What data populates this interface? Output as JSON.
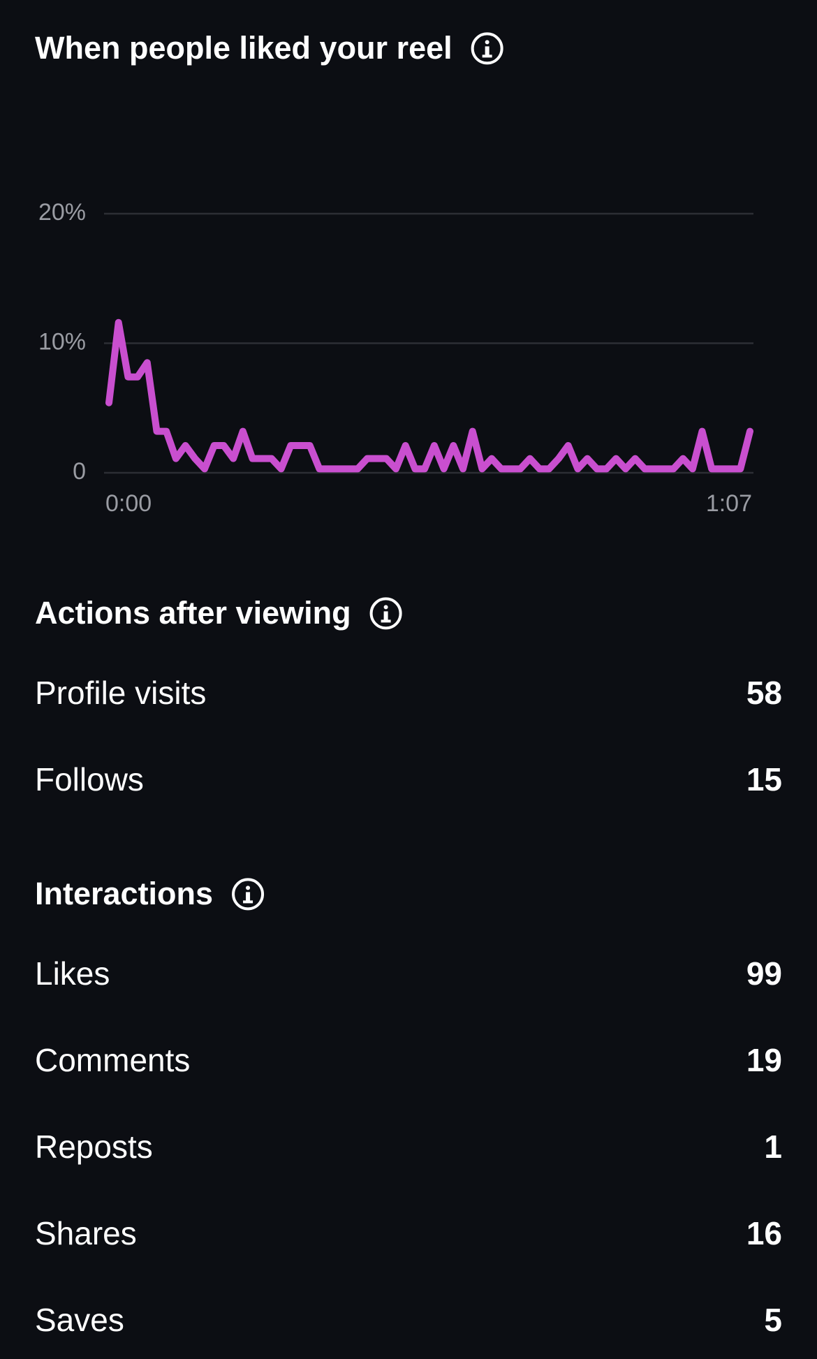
{
  "chart_data": {
    "type": "line",
    "title": "When people liked your reel",
    "x": [
      0,
      1,
      2,
      3,
      4,
      5,
      6,
      7,
      8,
      9,
      10,
      11,
      12,
      13,
      14,
      15,
      16,
      17,
      18,
      19,
      20,
      21,
      22,
      23,
      24,
      25,
      26,
      27,
      28,
      29,
      30,
      31,
      32,
      33,
      34,
      35,
      36,
      37,
      38,
      39,
      40,
      41,
      42,
      43,
      44,
      45,
      46,
      47,
      48,
      49,
      50,
      51,
      52,
      53,
      54,
      55,
      56,
      57,
      58,
      59,
      60,
      61,
      62,
      63,
      64,
      65,
      66,
      67
    ],
    "series": [
      {
        "color": "#c94fcf",
        "values": [
          5.4,
          11.6,
          7.4,
          7.4,
          8.5,
          3.2,
          3.2,
          1.1,
          2.1,
          1.1,
          0.3,
          2.1,
          2.1,
          1.1,
          3.2,
          1.1,
          1.1,
          1.1,
          0.3,
          2.1,
          2.1,
          2.1,
          0.3,
          0.3,
          0.3,
          0.3,
          0.3,
          1.1,
          1.1,
          1.1,
          0.3,
          2.1,
          0.3,
          0.3,
          2.1,
          0.3,
          2.1,
          0.3,
          3.2,
          0.3,
          1.1,
          0.3,
          0.3,
          0.3,
          1.1,
          0.3,
          0.3,
          1.1,
          2.1,
          0.3,
          1.1,
          0.3,
          0.3,
          1.1,
          0.3,
          1.1,
          0.3,
          0.3,
          0.3,
          0.3,
          1.1,
          0.3,
          3.2,
          0.3,
          0.3,
          0.3,
          0.3,
          3.2
        ]
      }
    ],
    "xlim": [
      0,
      67
    ],
    "xticks": [
      {
        "value": 0,
        "label": "0:00"
      },
      {
        "value": 67,
        "label": "1:07"
      }
    ],
    "ylim": [
      0,
      20
    ],
    "yticks": [
      0,
      {
        "value": 10,
        "label": "10%"
      },
      {
        "value": 20,
        "label": "20%"
      }
    ],
    "grid": true
  },
  "sections": [
    {
      "title": "Actions after viewing",
      "rows": [
        {
          "label": "Profile visits",
          "value": 58
        },
        {
          "label": "Follows",
          "value": 15
        }
      ]
    },
    {
      "title": "Interactions",
      "rows": [
        {
          "label": "Likes",
          "value": 99
        },
        {
          "label": "Comments",
          "value": 19
        },
        {
          "label": "Reposts",
          "value": 1
        },
        {
          "label": "Shares",
          "value": 16
        },
        {
          "label": "Saves",
          "value": 5
        }
      ]
    }
  ]
}
